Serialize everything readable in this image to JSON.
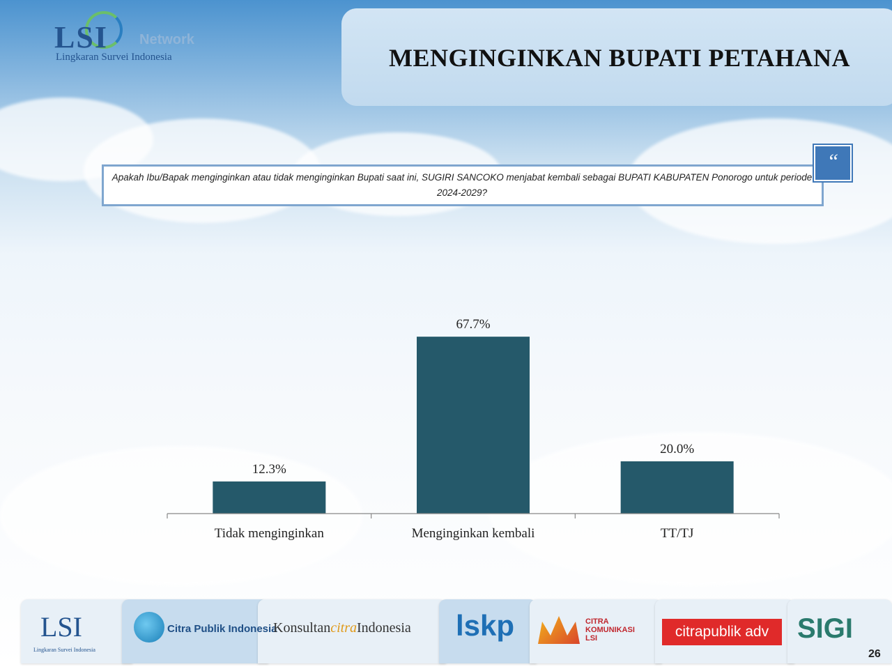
{
  "header": {
    "logo_main": "LSI",
    "logo_network": "Network",
    "logo_subtitle": "Lingkaran Survei Indonesia",
    "title": "MENGINGINKAN BUPATI PETAHANA"
  },
  "question": {
    "text": "Apakah Ibu/Bapak menginginkan atau tidak menginginkan Bupati saat ini, SUGIRI SANCOKO menjabat kembali sebagai BUPATI KABUPATEN Ponorogo untuk periode 2024-2029?",
    "quote_icon": "quote-icon"
  },
  "chart_data": {
    "type": "bar",
    "categories": [
      "Tidak menginginkan",
      "Menginginkan kembali",
      "TT/TJ"
    ],
    "values": [
      12.3,
      67.7,
      20.0
    ],
    "value_labels": [
      "12.3%",
      "67.7%",
      "20.0%"
    ],
    "title": "",
    "xlabel": "",
    "ylabel": "",
    "ylim": [
      0,
      80
    ],
    "grid": false,
    "bar_color": "#25596a"
  },
  "footer": {
    "logos": [
      "LSI",
      "Lingkaran Survei Indonesia",
      "Citra Publik Indonesia",
      "Konsultan",
      "citra",
      "Indonesia",
      "lskp",
      "CITRA KOMUNIKASI LSI",
      "citrapublik adv",
      "SIGI"
    ],
    "page_number": "26"
  },
  "colors": {
    "title_box": "#c3dbef",
    "question_border": "#7fa6cf",
    "quote_badge": "#3f78b8",
    "adv_red": "#e02a2a"
  }
}
